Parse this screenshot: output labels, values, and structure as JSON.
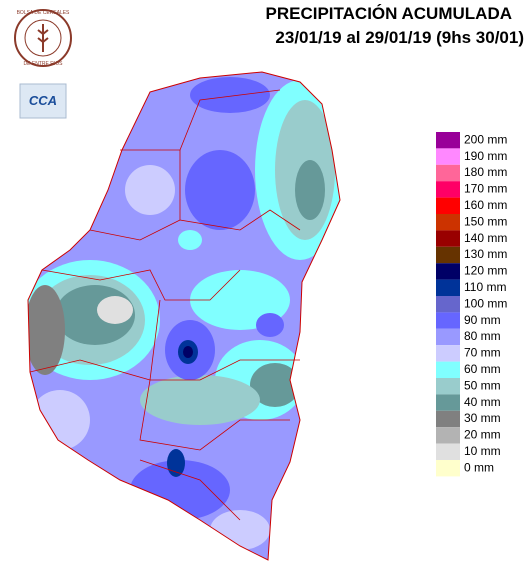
{
  "header": {
    "title": "PRECIPITACIÓN ACUMULADA",
    "subtitle": "23/01/19 al 29/01/19 (9hs 30/01)"
  },
  "logos": {
    "bolsa_top": "BOLSA DE CEREALES",
    "bolsa_bottom": "DE ENTRE RIOS",
    "cca": "CCA"
  },
  "legend": {
    "items": [
      {
        "label": "200 mm",
        "color": "#990099"
      },
      {
        "label": "190 mm",
        "color": "#ff88ff"
      },
      {
        "label": "180 mm",
        "color": "#ff6699"
      },
      {
        "label": "170 mm",
        "color": "#ff0066"
      },
      {
        "label": "160 mm",
        "color": "#ff0000"
      },
      {
        "label": "150 mm",
        "color": "#cc3300"
      },
      {
        "label": "140 mm",
        "color": "#990000"
      },
      {
        "label": "130 mm",
        "color": "#663300"
      },
      {
        "label": "120 mm",
        "color": "#000066"
      },
      {
        "label": "110 mm",
        "color": "#003399"
      },
      {
        "label": "100 mm",
        "color": "#6666cc"
      },
      {
        "label": "90 mm",
        "color": "#6666ff"
      },
      {
        "label": "80 mm",
        "color": "#9999ff"
      },
      {
        "label": "70 mm",
        "color": "#ccccff"
      },
      {
        "label": "60 mm",
        "color": "#80ffff"
      },
      {
        "label": "50 mm",
        "color": "#99cccc"
      },
      {
        "label": "40 mm",
        "color": "#669999"
      },
      {
        "label": "30 mm",
        "color": "#808080"
      },
      {
        "label": "20 mm",
        "color": "#b3b3b3"
      },
      {
        "label": "10 mm",
        "color": "#e0e0e0"
      },
      {
        "label": "0 mm",
        "color": "#ffffcc"
      }
    ]
  }
}
